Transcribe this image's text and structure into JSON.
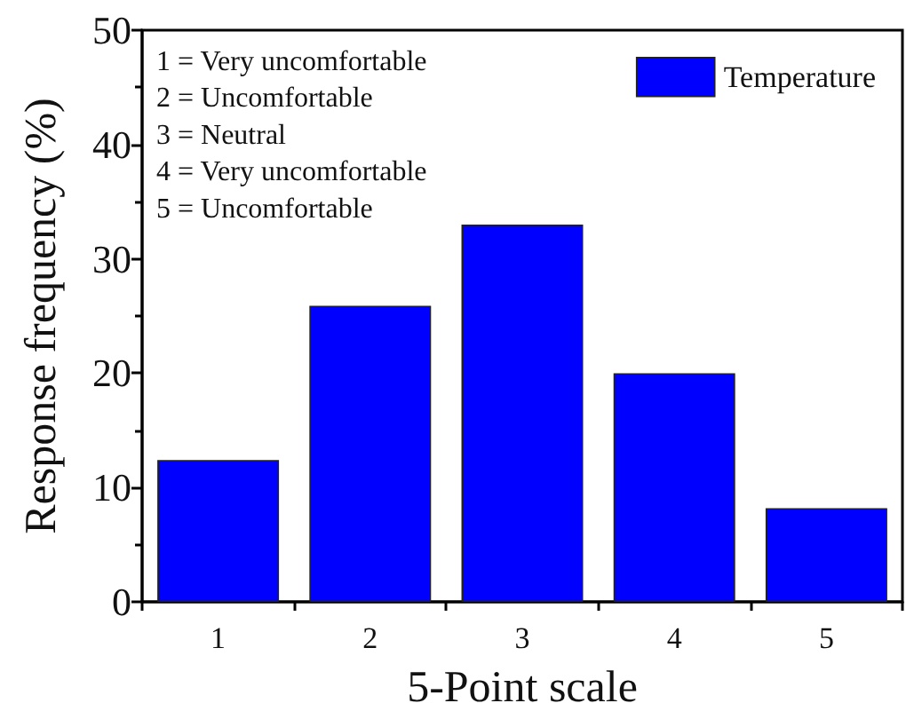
{
  "chart_data": {
    "type": "bar",
    "xlabel": "5-Point scale",
    "ylabel": "Response frequency (%)",
    "categories": [
      "1",
      "2",
      "3",
      "4",
      "5"
    ],
    "series": [
      {
        "name": "Temperature",
        "color": "#0000ff",
        "values": [
          12.4,
          25.9,
          33.0,
          20.0,
          8.2
        ]
      }
    ],
    "ylim": [
      0,
      50
    ],
    "yticks": [
      0,
      10,
      20,
      30,
      40,
      50
    ],
    "grid": false,
    "legend": "top right",
    "annotations": [
      "1 = Very uncomfortable",
      "2 = Uncomfortable",
      "3 = Neutral",
      "4 = Very uncomfortable",
      "5 = Uncomfortable"
    ]
  }
}
